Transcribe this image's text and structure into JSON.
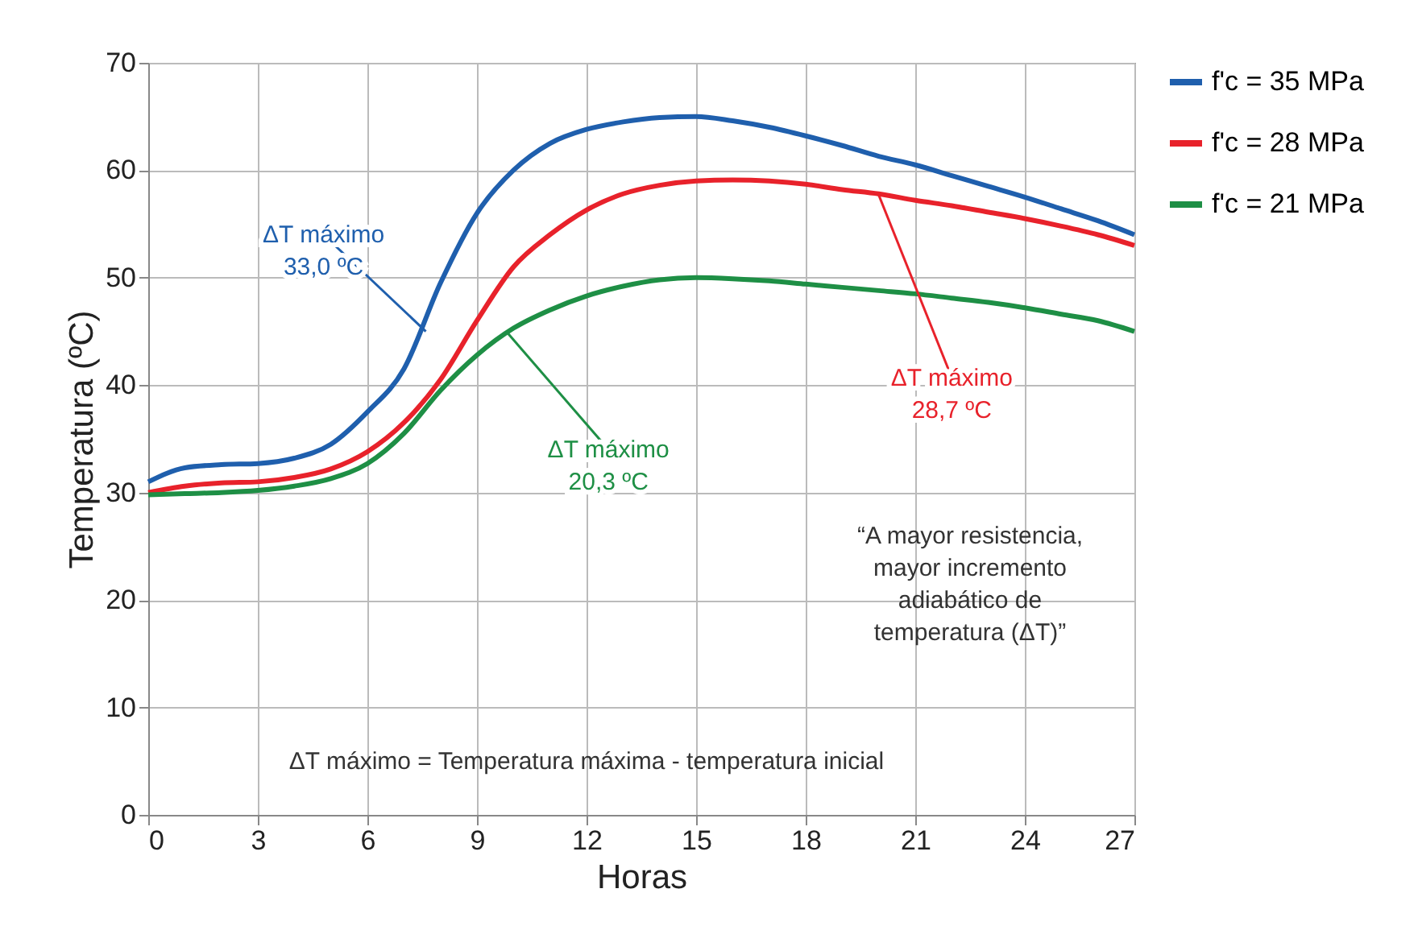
{
  "chart_data": {
    "type": "line",
    "xlabel": "Horas",
    "ylabel": "Temperatura (ºC)",
    "x": [
      0,
      1,
      2,
      3,
      4,
      5,
      6,
      7,
      8,
      9,
      10,
      11,
      12,
      13,
      14,
      15,
      16,
      17,
      18,
      19,
      20,
      21,
      22,
      23,
      24,
      25,
      26,
      27
    ],
    "series": [
      {
        "name": "f'c = 35 MPa",
        "color": "#1f5fad",
        "values": [
          31,
          32.3,
          32.6,
          32.7,
          33.2,
          34.5,
          37.5,
          41.5,
          49.5,
          56,
          60,
          62.5,
          63.8,
          64.5,
          64.9,
          65,
          64.6,
          64,
          63.2,
          62.3,
          61.3,
          60.5,
          59.5,
          58.5,
          57.5,
          56.4,
          55.3,
          54
        ]
      },
      {
        "name": "f'c = 28 MPa",
        "color": "#e8222b",
        "values": [
          30,
          30.6,
          30.9,
          31,
          31.4,
          32.2,
          33.8,
          36.5,
          40.5,
          46,
          51,
          54,
          56.3,
          57.8,
          58.6,
          59,
          59.1,
          59,
          58.7,
          58.2,
          57.8,
          57.2,
          56.7,
          56.1,
          55.5,
          54.8,
          54,
          53
        ]
      },
      {
        "name": "f'c = 21 MPa",
        "color": "#1e8f45",
        "values": [
          29.8,
          29.9,
          30,
          30.2,
          30.6,
          31.3,
          32.7,
          35.5,
          39.5,
          42.8,
          45.3,
          47,
          48.3,
          49.2,
          49.8,
          50,
          49.9,
          49.7,
          49.4,
          49.1,
          48.8,
          48.5,
          48.1,
          47.7,
          47.2,
          46.6,
          46,
          45
        ]
      }
    ],
    "xlim": [
      0,
      27
    ],
    "xticks": [
      0,
      3,
      6,
      9,
      12,
      15,
      18,
      21,
      24,
      27
    ],
    "ylim": [
      0,
      70
    ],
    "yticks": [
      0,
      10,
      20,
      30,
      40,
      50,
      60,
      70
    ],
    "grid": true,
    "legend": "right",
    "marker": "none",
    "line_style": "solid",
    "annotations": [
      {
        "text": "ΔT máximo\n33,0 ºC",
        "x": 7.6,
        "y": 45
      },
      {
        "text": "ΔT máximo\n28,7 ºC",
        "x": 20,
        "y": 57.7
      },
      {
        "text": "ΔT máximo\n20,3 ºC",
        "x": 9.8,
        "y": 45
      },
      "“A mayor resistencia,\nmayor incremento\nadiabático de\ntemperatura (ΔT)”",
      "ΔT máximo = Temperatura máxima - temperatura inicial"
    ]
  }
}
